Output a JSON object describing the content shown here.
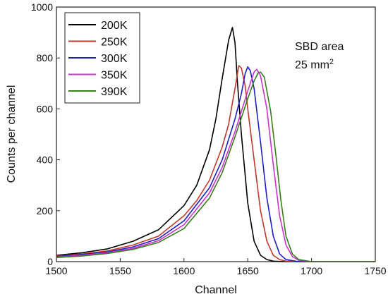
{
  "chart_data": {
    "type": "line",
    "xlabel": "Channel",
    "ylabel": "Counts per channel",
    "xlim": [
      1500,
      1750
    ],
    "ylim": [
      0,
      1000
    ],
    "xticks": [
      1500,
      1550,
      1600,
      1650,
      1700,
      1750
    ],
    "yticks": [
      0,
      200,
      400,
      600,
      800,
      1000
    ],
    "grid": false,
    "legend_position": "top-left",
    "annotation": {
      "line1": "SBD area",
      "line2_prefix": "25 mm",
      "line2_sup": "2"
    },
    "series": [
      {
        "name": "200K",
        "color": "#000000",
        "x": [
          1500,
          1520,
          1540,
          1560,
          1580,
          1600,
          1610,
          1620,
          1625,
          1630,
          1635,
          1638,
          1640,
          1642,
          1645,
          1650,
          1655,
          1660,
          1665,
          1670,
          1680,
          1750
        ],
        "y": [
          25,
          35,
          50,
          80,
          125,
          220,
          300,
          440,
          560,
          720,
          870,
          920,
          860,
          700,
          500,
          230,
          80,
          25,
          8,
          2,
          0,
          0
        ]
      },
      {
        "name": "250K",
        "color": "#c0392b",
        "x": [
          1500,
          1520,
          1540,
          1560,
          1580,
          1600,
          1610,
          1620,
          1630,
          1635,
          1640,
          1643,
          1645,
          1648,
          1650,
          1655,
          1660,
          1665,
          1670,
          1675,
          1680,
          1690,
          1750
        ],
        "y": [
          22,
          30,
          42,
          65,
          100,
          180,
          240,
          320,
          450,
          540,
          680,
          770,
          760,
          690,
          600,
          400,
          200,
          80,
          25,
          8,
          2,
          0,
          0
        ]
      },
      {
        "name": "300K",
        "color": "#1f1fc4",
        "x": [
          1500,
          1520,
          1540,
          1560,
          1580,
          1600,
          1620,
          1630,
          1640,
          1645,
          1648,
          1650,
          1652,
          1655,
          1660,
          1665,
          1670,
          1675,
          1680,
          1690,
          1750
        ],
        "y": [
          20,
          28,
          38,
          58,
          90,
          160,
          290,
          400,
          560,
          660,
          740,
          765,
          750,
          680,
          470,
          250,
          100,
          30,
          8,
          0,
          0
        ]
      },
      {
        "name": "350K",
        "color": "#cc33cc",
        "x": [
          1500,
          1520,
          1540,
          1560,
          1580,
          1600,
          1620,
          1630,
          1640,
          1650,
          1655,
          1657,
          1660,
          1665,
          1670,
          1675,
          1680,
          1685,
          1690,
          1700,
          1750
        ],
        "y": [
          18,
          25,
          35,
          52,
          82,
          145,
          270,
          370,
          510,
          670,
          745,
          755,
          730,
          600,
          380,
          180,
          65,
          20,
          5,
          0,
          0
        ]
      },
      {
        "name": "390K",
        "color": "#3a7d1e",
        "x": [
          1500,
          1520,
          1540,
          1560,
          1580,
          1600,
          1620,
          1630,
          1640,
          1650,
          1655,
          1658,
          1660,
          1663,
          1668,
          1672,
          1676,
          1680,
          1685,
          1690,
          1700,
          1750
        ],
        "y": [
          16,
          22,
          32,
          48,
          75,
          130,
          250,
          350,
          490,
          640,
          710,
          740,
          745,
          725,
          590,
          420,
          240,
          100,
          30,
          8,
          0,
          0
        ]
      }
    ]
  }
}
